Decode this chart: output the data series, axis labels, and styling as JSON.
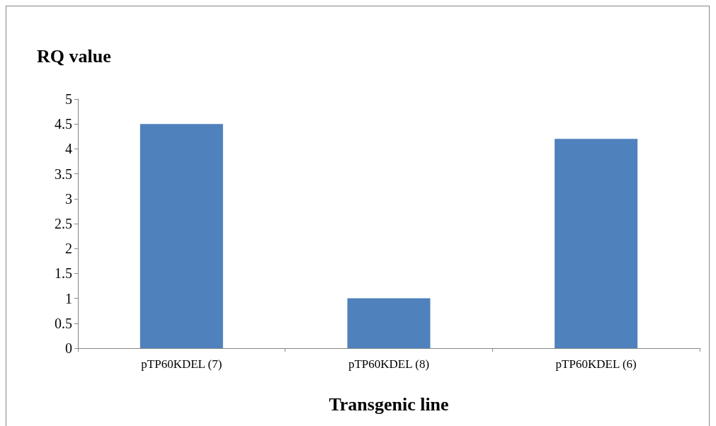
{
  "chart_data": {
    "type": "bar",
    "ylabel": "RQ value",
    "xlabel": "Transgenic line",
    "categories": [
      "pTP60KDEL (7)",
      "pTP60KDEL (8)",
      "pTP60KDEL (6)"
    ],
    "values": [
      4.5,
      1.0,
      4.2
    ],
    "color": "#4f81bd",
    "ylim": [
      0,
      5
    ],
    "yticks": [
      0,
      0.5,
      1,
      1.5,
      2,
      2.5,
      3,
      3.5,
      4,
      4.5,
      5
    ],
    "grid": false
  }
}
